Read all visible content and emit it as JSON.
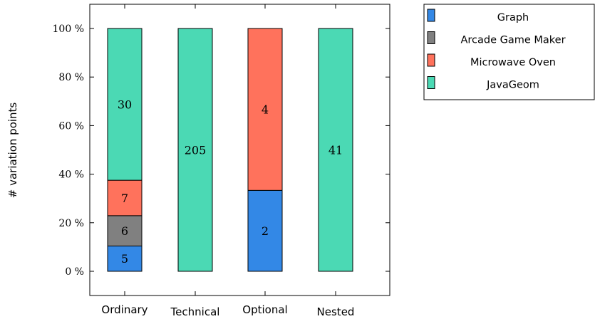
{
  "chart_data": {
    "type": "bar",
    "stacked": true,
    "normalized": true,
    "categories": [
      "Ordinary",
      "Technical",
      "Optional",
      "Nested"
    ],
    "ylabel": "# variation points",
    "xlabel": "",
    "ylim": [
      0,
      100
    ],
    "y_ticks": [
      "0 %",
      "20 %",
      "40 %",
      "60 %",
      "80 %",
      "100 %"
    ],
    "y_tick_values": [
      0,
      20,
      40,
      60,
      80,
      100
    ],
    "grid": false,
    "legend_position": "top-right outside",
    "series": [
      {
        "name": "Graph",
        "color": "#3388e6",
        "values": [
          5,
          0,
          2,
          0
        ]
      },
      {
        "name": "Arcade Game Maker",
        "color": "#808080",
        "values": [
          6,
          0,
          0,
          0
        ]
      },
      {
        "name": "Microwave Oven",
        "color": "#ff725c",
        "values": [
          7,
          0,
          4,
          0
        ]
      },
      {
        "name": "JavaGeom",
        "color": "#4bd9b4",
        "values": [
          30,
          205,
          0,
          41
        ]
      }
    ]
  }
}
